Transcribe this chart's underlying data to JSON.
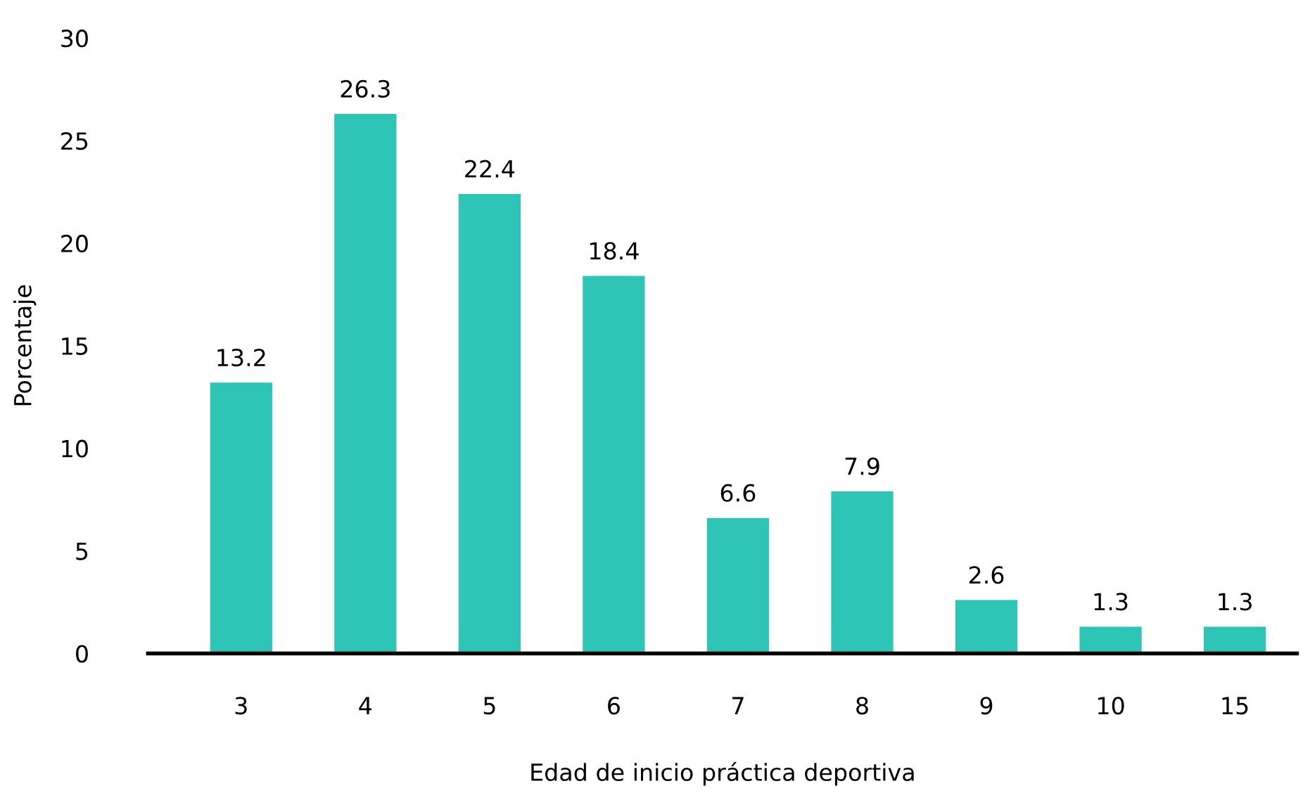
{
  "chart_data": {
    "type": "bar",
    "xlabel": "Edad de inicio práctica deportiva",
    "ylabel": "Porcentaje",
    "categories": [
      "3",
      "4",
      "5",
      "6",
      "7",
      "8",
      "9",
      "10",
      "15"
    ],
    "values": [
      13.2,
      26.3,
      22.4,
      18.4,
      6.6,
      7.9,
      2.6,
      1.3,
      1.3
    ],
    "color": "#2ec4b6",
    "ylim": [
      0,
      30
    ],
    "yticks": [
      0,
      5,
      10,
      15,
      20,
      25,
      30
    ],
    "grid": false,
    "data_labels": true
  }
}
